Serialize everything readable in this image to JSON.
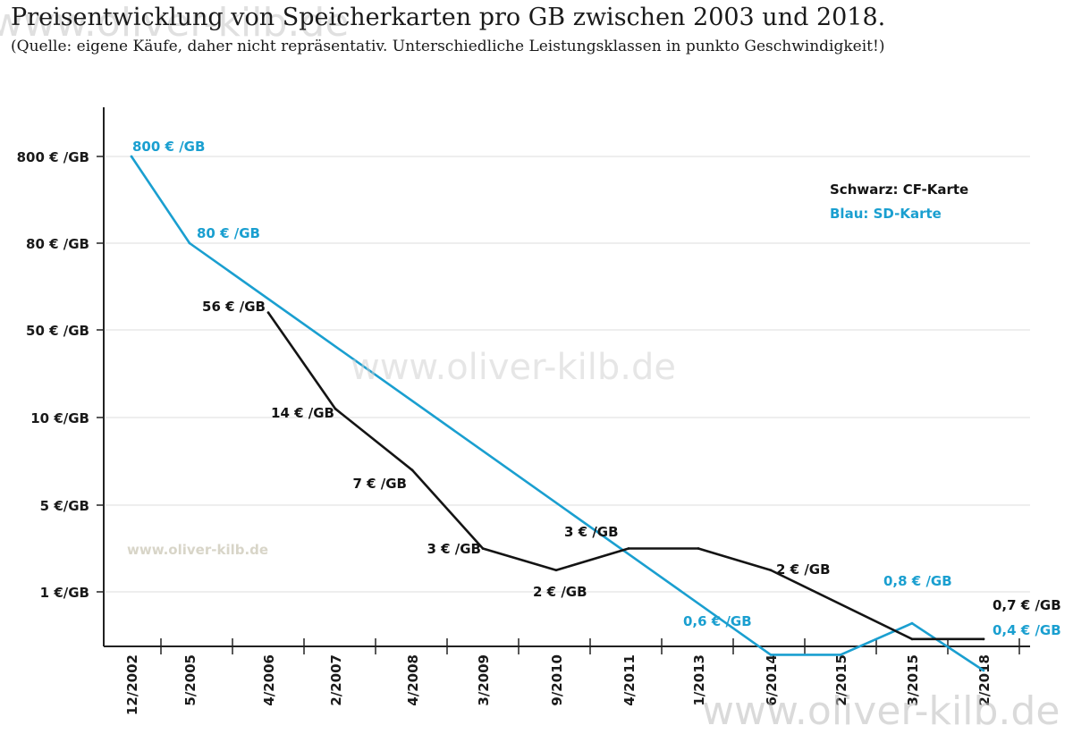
{
  "title": "Preisentwicklung von Speicherkarten pro GB zwischen 2003 und 2018.",
  "subtitle": "(Quelle: eigene Käufe, daher nicht repräsentativ. Unterschiedliche Leistungsklassen in punkto Geschwindigkeit!)",
  "watermark": "www.oliver-kilb.de",
  "colors": {
    "sd": "#1a9fd0",
    "cf": "#141414",
    "grid": "#dddddd",
    "axis": "#222222"
  },
  "chart_data": {
    "type": "line",
    "categories": [
      "12/2002",
      "5/2005",
      "4/2006",
      "2/2007",
      "4/2008",
      "3/2009",
      "9/2010",
      "4/2011",
      "1/2013",
      "6/2014",
      "2/2015",
      "3/2015",
      "2/2018"
    ],
    "y_ticks": [
      "800 € /GB",
      "80 € /GB",
      "50 € /GB",
      "10 €/GB",
      "5 €/GB",
      "1 €/GB"
    ],
    "legend": {
      "cf": "Schwarz: CF-Karte",
      "sd": "Blau: SD-Karte",
      "position": "top-right"
    },
    "series": [
      {
        "key": "sd",
        "values": [
          800,
          80,
          null,
          null,
          null,
          null,
          null,
          null,
          null,
          0.6,
          0.6,
          0.8,
          0.4
        ]
      },
      {
        "key": "cf",
        "values": [
          null,
          null,
          56,
          14,
          7,
          3,
          2,
          3,
          3,
          2,
          null,
          0.7,
          0.7
        ]
      }
    ],
    "labels": [
      {
        "text": "800 € /GB",
        "series": "sd"
      },
      {
        "text": "80 € /GB",
        "series": "sd"
      },
      {
        "text": "56 € /GB",
        "series": "cf"
      },
      {
        "text": "14 € /GB",
        "series": "cf"
      },
      {
        "text": "7 € /GB",
        "series": "cf"
      },
      {
        "text": "3 € /GB",
        "series": "cf"
      },
      {
        "text": "2 € /GB",
        "series": "cf"
      },
      {
        "text": "3 € /GB",
        "series": "cf"
      },
      {
        "text": "2 € /GB",
        "series": "cf"
      },
      {
        "text": "0,8 € /GB",
        "series": "sd"
      },
      {
        "text": "0,7 € /GB",
        "series": "cf"
      },
      {
        "text": "0,6 € /GB",
        "series": "sd"
      },
      {
        "text": "0,4 € /GB",
        "series": "sd"
      }
    ],
    "grid": true
  }
}
